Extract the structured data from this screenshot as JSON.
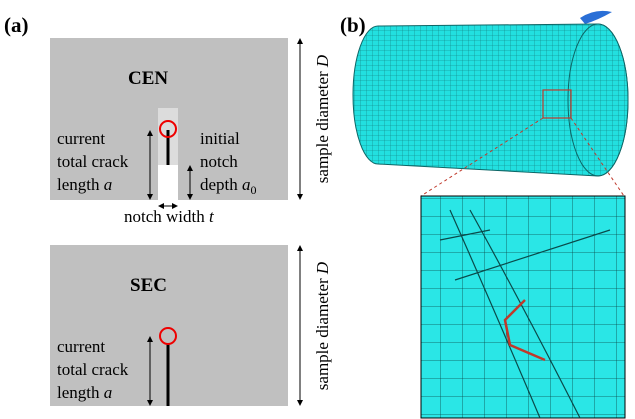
{
  "panel_a": {
    "label": "(a)",
    "cen": {
      "title": "CEN",
      "crack_line1": "current",
      "crack_line2": "total crack",
      "crack_line3": "length",
      "crack_symbol": "a",
      "notch_line1": "initial",
      "notch_line2": "notch",
      "notch_line3": "depth",
      "notch_symbol": "a",
      "notch_subscript": "0",
      "width_text": "notch width",
      "width_symbol": "t",
      "diameter_text": "sample diameter",
      "diameter_symbol": "D"
    },
    "sec": {
      "title": "SEC",
      "crack_line1": "current",
      "crack_line2": "total crack",
      "crack_line3": "length",
      "crack_symbol": "a",
      "diameter_text": "sample diameter",
      "diameter_symbol": "D"
    }
  },
  "panel_b": {
    "label": "(b)"
  }
}
